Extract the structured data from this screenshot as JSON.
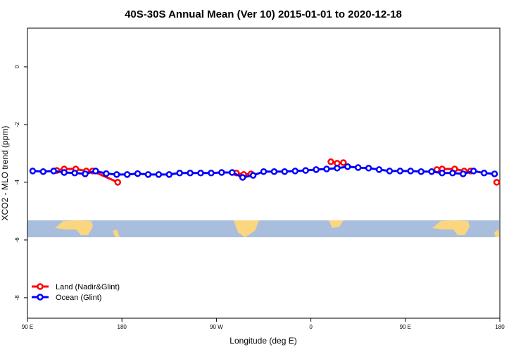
{
  "chart_data": {
    "type": "line",
    "title": "40S-30S Annual Mean (Ver 10)   2015-01-01 to 2020-12-18",
    "xlabel": "Longitude (deg E)",
    "ylabel": "XCO2 - MLO trend (ppm)",
    "xlim": [
      90,
      540
    ],
    "ylim": [
      -8.71,
      1.34
    ],
    "xticks": [
      {
        "value": 90,
        "label": "90 E"
      },
      {
        "value": 180,
        "label": "180"
      },
      {
        "value": 270,
        "label": "90 W"
      },
      {
        "value": 360,
        "label": "0"
      },
      {
        "value": 450,
        "label": "90 E"
      },
      {
        "value": 540,
        "label": "180"
      }
    ],
    "yticks": [
      0,
      -2,
      -4,
      -6,
      -8
    ],
    "legend": "bottomleft",
    "series": [
      {
        "name": "Land (Nadir&Glint)",
        "color": "#ff0000",
        "x": [
          118,
          125,
          136,
          146,
          152,
          176,
          255,
          289,
          296,
          303,
          380,
          379,
          385,
          391,
          450,
          480,
          485,
          497,
          506,
          512,
          525,
          537
        ],
        "values": [
          -3.59,
          -3.54,
          -3.54,
          -3.61,
          -3.61,
          -4.0,
          null,
          -3.68,
          -3.73,
          -3.71,
          null,
          -3.29,
          -3.34,
          -3.32,
          null,
          -3.56,
          -3.54,
          -3.54,
          -3.61,
          -3.61,
          null,
          -4.0
        ]
      },
      {
        "name": "Ocean (Glint)",
        "color": "#0000ff",
        "x": [
          95,
          105,
          115,
          125,
          135,
          145,
          155,
          165,
          175,
          185,
          195,
          205,
          215,
          225,
          235,
          245,
          255,
          265,
          275,
          285,
          295,
          305,
          315,
          325,
          335,
          345,
          355,
          365,
          375,
          385,
          395,
          405,
          415,
          425,
          435,
          445,
          455,
          465,
          475,
          485,
          495,
          505,
          515,
          525,
          535
        ],
        "values": [
          -3.61,
          -3.63,
          -3.61,
          -3.66,
          -3.68,
          -3.71,
          -3.61,
          -3.7,
          -3.73,
          -3.73,
          -3.7,
          -3.73,
          -3.73,
          -3.73,
          -3.68,
          -3.68,
          -3.68,
          -3.68,
          -3.66,
          -3.66,
          -3.83,
          -3.76,
          -3.63,
          -3.63,
          -3.63,
          -3.61,
          -3.59,
          -3.56,
          -3.54,
          -3.51,
          -3.46,
          -3.49,
          -3.51,
          -3.56,
          -3.61,
          -3.61,
          -3.61,
          -3.63,
          -3.63,
          -3.68,
          -3.68,
          -3.71,
          -3.61,
          -3.68,
          -3.71
        ]
      }
    ]
  }
}
